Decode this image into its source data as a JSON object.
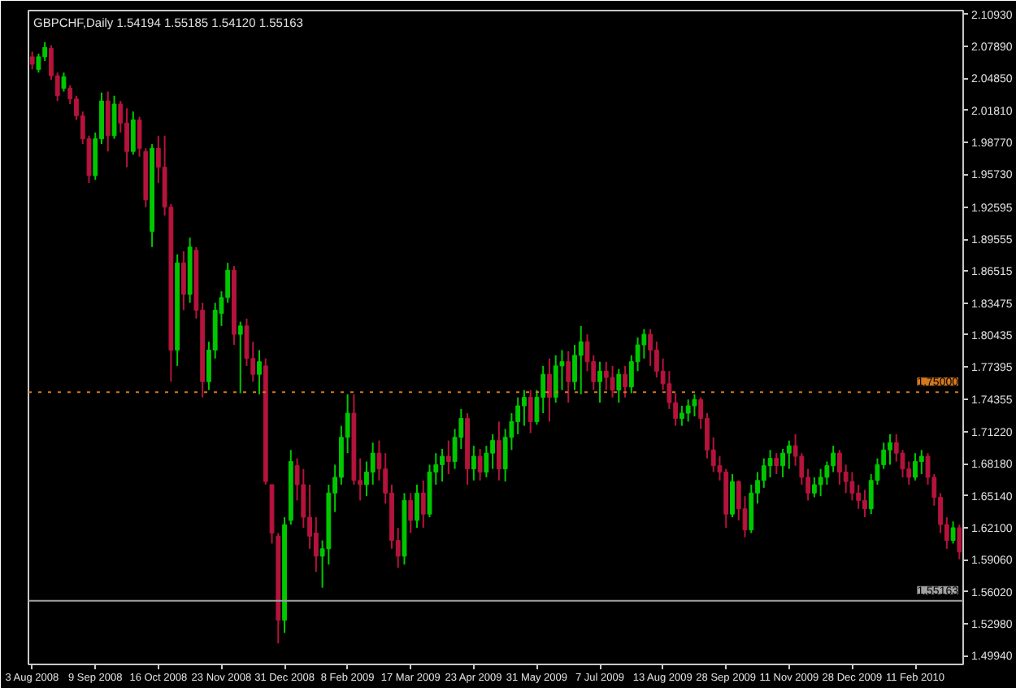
{
  "chart_data": {
    "type": "candlestick",
    "title": "GBPCHF,Daily 1.54194 1.55185 1.54120 1.55163",
    "categories": [
      "3 Aug 2008",
      null,
      null,
      null,
      null,
      null,
      null,
      null,
      null,
      null,
      "9 Sep 2008",
      null,
      null,
      null,
      null,
      null,
      null,
      null,
      null,
      null,
      "16 Oct 2008",
      null,
      null,
      null,
      null,
      null,
      null,
      null,
      null,
      null,
      "23 Nov 2008",
      null,
      null,
      null,
      null,
      null,
      null,
      null,
      null,
      null,
      "31 Dec 2008",
      null,
      null,
      null,
      null,
      null,
      null,
      null,
      null,
      null,
      "8 Feb 2009",
      null,
      null,
      null,
      null,
      null,
      null,
      null,
      null,
      null,
      "17 Mar 2009",
      null,
      null,
      null,
      null,
      null,
      null,
      null,
      null,
      null,
      "23 Apr 2009",
      null,
      null,
      null,
      null,
      null,
      null,
      null,
      null,
      null,
      "31 May 2009",
      null,
      null,
      null,
      null,
      null,
      null,
      null,
      null,
      null,
      "7 Jul 2009",
      null,
      null,
      null,
      null,
      null,
      null,
      null,
      null,
      null,
      "13 Aug 2009",
      null,
      null,
      null,
      null,
      null,
      null,
      null,
      null,
      null,
      "28 Sep 2009",
      null,
      null,
      null,
      null,
      null,
      null,
      null,
      null,
      null,
      "11 Nov 2009",
      null,
      null,
      null,
      null,
      null,
      null,
      null,
      null,
      null,
      "28 Dec 2009",
      null,
      null,
      null,
      null,
      null,
      null,
      null,
      null,
      null,
      "11 Feb 2010",
      null,
      null,
      null,
      null,
      null,
      null,
      null
    ],
    "ohlc": [
      [
        2.069,
        2.074,
        2.057,
        2.062
      ],
      [
        2.057,
        2.072,
        2.054,
        2.069
      ],
      [
        2.069,
        2.083,
        2.065,
        2.078
      ],
      [
        2.077,
        2.08,
        2.047,
        2.051
      ],
      [
        2.051,
        2.054,
        2.027,
        2.032
      ],
      [
        2.039,
        2.054,
        2.036,
        2.05
      ],
      [
        2.039,
        2.042,
        2.024,
        2.029
      ],
      [
        2.029,
        2.032,
        2.009,
        2.013
      ],
      [
        2.013,
        2.017,
        1.986,
        1.991
      ],
      [
        1.991,
        1.994,
        1.949,
        1.956
      ],
      [
        1.956,
        1.997,
        1.952,
        1.991
      ],
      [
        1.991,
        2.035,
        1.986,
        2.027
      ],
      [
        2.027,
        2.036,
        1.979,
        1.994
      ],
      [
        1.994,
        2.032,
        1.991,
        2.024
      ],
      [
        2.024,
        2.027,
        1.997,
        2.006
      ],
      [
        2.006,
        2.02,
        1.964,
        1.979
      ],
      [
        1.979,
        2.017,
        1.976,
        2.009
      ],
      [
        2.009,
        2.012,
        1.974,
        1.982
      ],
      [
        1.979,
        1.982,
        1.926,
        1.933
      ],
      [
        1.903,
        1.986,
        1.888,
        1.982
      ],
      [
        1.982,
        1.994,
        1.949,
        1.964
      ],
      [
        1.964,
        1.994,
        1.918,
        1.926
      ],
      [
        1.926,
        1.929,
        1.76,
        1.79
      ],
      [
        1.79,
        1.881,
        1.775,
        1.873
      ],
      [
        1.873,
        1.884,
        1.828,
        1.843
      ],
      [
        1.843,
        1.897,
        1.835,
        1.888
      ],
      [
        1.885,
        1.888,
        1.82,
        1.828
      ],
      [
        1.828,
        1.835,
        1.745,
        1.76
      ],
      [
        1.76,
        1.798,
        1.752,
        1.79
      ],
      [
        1.79,
        1.835,
        1.782,
        1.828
      ],
      [
        1.825,
        1.846,
        1.813,
        1.84
      ],
      [
        1.84,
        1.873,
        1.835,
        1.866
      ],
      [
        1.866,
        1.87,
        1.795,
        1.805
      ],
      [
        1.805,
        1.817,
        1.749,
        1.813
      ],
      [
        1.813,
        1.82,
        1.775,
        1.782
      ],
      [
        1.782,
        1.798,
        1.76,
        1.767
      ],
      [
        1.767,
        1.79,
        1.748,
        1.779
      ],
      [
        1.775,
        1.782,
        1.662,
        1.665
      ],
      [
        1.662,
        1.662,
        1.606,
        1.616
      ],
      [
        1.613,
        1.616,
        1.511,
        1.533
      ],
      [
        1.533,
        1.631,
        1.521,
        1.624
      ],
      [
        1.628,
        1.695,
        1.624,
        1.684
      ],
      [
        1.68,
        1.687,
        1.647,
        1.662
      ],
      [
        1.662,
        1.677,
        1.621,
        1.631
      ],
      [
        1.631,
        1.662,
        1.601,
        1.613
      ],
      [
        1.616,
        1.631,
        1.579,
        1.594
      ],
      [
        1.594,
        1.609,
        1.564,
        1.601
      ],
      [
        1.601,
        1.662,
        1.586,
        1.654
      ],
      [
        1.654,
        1.681,
        1.636,
        1.669
      ],
      [
        1.669,
        1.718,
        1.662,
        1.707
      ],
      [
        1.707,
        1.748,
        1.692,
        1.73
      ],
      [
        1.73,
        1.748,
        1.662,
        1.666
      ],
      [
        1.666,
        1.687,
        1.647,
        1.662
      ],
      [
        1.662,
        1.684,
        1.651,
        1.674
      ],
      [
        1.674,
        1.702,
        1.662,
        1.692
      ],
      [
        1.692,
        1.704,
        1.666,
        1.677
      ],
      [
        1.677,
        1.692,
        1.644,
        1.654
      ],
      [
        1.654,
        1.662,
        1.601,
        1.609
      ],
      [
        1.609,
        1.621,
        1.583,
        1.594
      ],
      [
        1.594,
        1.654,
        1.586,
        1.647
      ],
      [
        1.647,
        1.654,
        1.616,
        1.628
      ],
      [
        1.628,
        1.662,
        1.621,
        1.654
      ],
      [
        1.654,
        1.666,
        1.621,
        1.634
      ],
      [
        1.634,
        1.681,
        1.631,
        1.674
      ],
      [
        1.674,
        1.692,
        1.662,
        1.681
      ],
      [
        1.681,
        1.696,
        1.665,
        1.689
      ],
      [
        1.689,
        1.704,
        1.672,
        1.684
      ],
      [
        1.684,
        1.715,
        1.677,
        1.707
      ],
      [
        1.707,
        1.734,
        1.696,
        1.725
      ],
      [
        1.725,
        1.73,
        1.662,
        1.677
      ],
      [
        1.677,
        1.699,
        1.666,
        1.689
      ],
      [
        1.689,
        1.696,
        1.666,
        1.674
      ],
      [
        1.674,
        1.699,
        1.669,
        1.692
      ],
      [
        1.692,
        1.71,
        1.677,
        1.704
      ],
      [
        1.704,
        1.722,
        1.666,
        1.677
      ],
      [
        1.677,
        1.715,
        1.665,
        1.707
      ],
      [
        1.707,
        1.73,
        1.695,
        1.722
      ],
      [
        1.722,
        1.745,
        1.71,
        1.737
      ],
      [
        1.737,
        1.752,
        1.718,
        1.745
      ],
      [
        1.745,
        1.752,
        1.711,
        1.722
      ],
      [
        1.722,
        1.752,
        1.719,
        1.745
      ],
      [
        1.745,
        1.775,
        1.73,
        1.767
      ],
      [
        1.767,
        1.782,
        1.722,
        1.745
      ],
      [
        1.745,
        1.785,
        1.74,
        1.775
      ],
      [
        1.775,
        1.79,
        1.752,
        1.779
      ],
      [
        1.779,
        1.789,
        1.74,
        1.76
      ],
      [
        1.76,
        1.795,
        1.752,
        1.785
      ],
      [
        1.785,
        1.813,
        1.748,
        1.798
      ],
      [
        1.798,
        1.805,
        1.77,
        1.779
      ],
      [
        1.779,
        1.785,
        1.752,
        1.76
      ],
      [
        1.76,
        1.779,
        1.74,
        1.77
      ],
      [
        1.77,
        1.779,
        1.752,
        1.764
      ],
      [
        1.764,
        1.775,
        1.745,
        1.752
      ],
      [
        1.752,
        1.772,
        1.74,
        1.767
      ],
      [
        1.767,
        1.775,
        1.745,
        1.755
      ],
      [
        1.755,
        1.785,
        1.749,
        1.779
      ],
      [
        1.779,
        1.802,
        1.77,
        1.795
      ],
      [
        1.795,
        1.81,
        1.782,
        1.805
      ],
      [
        1.805,
        1.81,
        1.775,
        1.79
      ],
      [
        1.79,
        1.798,
        1.764,
        1.77
      ],
      [
        1.77,
        1.782,
        1.752,
        1.758
      ],
      [
        1.758,
        1.77,
        1.734,
        1.74
      ],
      [
        1.74,
        1.749,
        1.718,
        1.725
      ],
      [
        1.725,
        1.737,
        1.718,
        1.73
      ],
      [
        1.73,
        1.743,
        1.722,
        1.737
      ],
      [
        1.737,
        1.748,
        1.727,
        1.743
      ],
      [
        1.743,
        1.745,
        1.715,
        1.725
      ],
      [
        1.725,
        1.73,
        1.687,
        1.695
      ],
      [
        1.695,
        1.707,
        1.674,
        1.68
      ],
      [
        1.68,
        1.689,
        1.666,
        1.674
      ],
      [
        1.674,
        1.677,
        1.621,
        1.634
      ],
      [
        1.634,
        1.672,
        1.631,
        1.665
      ],
      [
        1.665,
        1.666,
        1.628,
        1.639
      ],
      [
        1.639,
        1.651,
        1.612,
        1.619
      ],
      [
        1.619,
        1.662,
        1.616,
        1.654
      ],
      [
        1.654,
        1.674,
        1.644,
        1.666
      ],
      [
        1.666,
        1.687,
        1.659,
        1.68
      ],
      [
        1.68,
        1.695,
        1.669,
        1.687
      ],
      [
        1.687,
        1.692,
        1.672,
        1.68
      ],
      [
        1.68,
        1.696,
        1.669,
        1.692
      ],
      [
        1.692,
        1.704,
        1.677,
        1.699
      ],
      [
        1.699,
        1.71,
        1.68,
        1.689
      ],
      [
        1.689,
        1.692,
        1.662,
        1.669
      ],
      [
        1.669,
        1.677,
        1.647,
        1.654
      ],
      [
        1.654,
        1.669,
        1.65,
        1.662
      ],
      [
        1.662,
        1.677,
        1.651,
        1.669
      ],
      [
        1.669,
        1.684,
        1.662,
        1.68
      ],
      [
        1.68,
        1.699,
        1.674,
        1.692
      ],
      [
        1.692,
        1.695,
        1.662,
        1.674
      ],
      [
        1.674,
        1.681,
        1.654,
        1.665
      ],
      [
        1.665,
        1.674,
        1.647,
        1.654
      ],
      [
        1.654,
        1.662,
        1.639,
        1.647
      ],
      [
        1.647,
        1.657,
        1.631,
        1.639
      ],
      [
        1.639,
        1.672,
        1.634,
        1.666
      ],
      [
        1.666,
        1.687,
        1.662,
        1.681
      ],
      [
        1.681,
        1.702,
        1.677,
        1.695
      ],
      [
        1.695,
        1.71,
        1.681,
        1.702
      ],
      [
        1.702,
        1.71,
        1.684,
        1.692
      ],
      [
        1.692,
        1.695,
        1.669,
        1.677
      ],
      [
        1.677,
        1.684,
        1.662,
        1.669
      ],
      [
        1.669,
        1.692,
        1.666,
        1.684
      ],
      [
        1.684,
        1.695,
        1.672,
        1.689
      ],
      [
        1.689,
        1.692,
        1.662,
        1.669
      ],
      [
        1.669,
        1.672,
        1.642,
        1.65
      ],
      [
        1.65,
        1.654,
        1.616,
        1.624
      ],
      [
        1.624,
        1.631,
        1.601,
        1.609
      ],
      [
        1.609,
        1.627,
        1.606,
        1.621
      ],
      [
        1.621,
        1.624,
        1.591,
        1.598
      ]
    ],
    "colors": [
      "#b4143c",
      "#00c800",
      "#00c800",
      "#b4143c",
      "#b4143c",
      "#00c800",
      "#b4143c",
      "#b4143c",
      "#b4143c",
      "#b4143c",
      "#00c800",
      "#00c800",
      "#b4143c",
      "#00c800",
      "#b4143c",
      "#b4143c",
      "#00c800",
      "#b4143c",
      "#b4143c",
      "#00c800",
      "#b4143c",
      "#b4143c",
      "#b4143c",
      "#00c800",
      "#b4143c",
      "#00c800",
      "#b4143c",
      "#b4143c",
      "#00c800",
      "#00c800",
      "#00c800",
      "#00c800",
      "#b4143c",
      "#00c800",
      "#b4143c",
      "#b4143c",
      "#00c800",
      "#b4143c",
      "#b4143c",
      "#b4143c",
      "#00c800",
      "#00c800",
      "#b4143c",
      "#b4143c",
      "#b4143c",
      "#b4143c",
      "#00c800",
      "#00c800",
      "#00c800",
      "#00c800",
      "#00c800",
      "#b4143c",
      "#b4143c",
      "#00c800",
      "#00c800",
      "#b4143c",
      "#b4143c",
      "#b4143c",
      "#b4143c",
      "#00c800",
      "#b4143c",
      "#00c800",
      "#b4143c",
      "#00c800",
      "#00c800",
      "#00c800",
      "#b4143c",
      "#00c800",
      "#00c800",
      "#b4143c",
      "#00c800",
      "#b4143c",
      "#00c800",
      "#00c800",
      "#b4143c",
      "#00c800",
      "#00c800",
      "#00c800",
      "#00c800",
      "#b4143c",
      "#00c800",
      "#00c800",
      "#b4143c",
      "#00c800",
      "#00c800",
      "#b4143c",
      "#00c800",
      "#00c800",
      "#b4143c",
      "#b4143c",
      "#00c800",
      "#b4143c",
      "#b4143c",
      "#00c800",
      "#b4143c",
      "#00c800",
      "#00c800",
      "#00c800",
      "#b4143c",
      "#b4143c",
      "#b4143c",
      "#b4143c",
      "#b4143c",
      "#00c800",
      "#00c800",
      "#00c800",
      "#b4143c",
      "#b4143c",
      "#b4143c",
      "#b4143c",
      "#b4143c",
      "#00c800",
      "#b4143c",
      "#b4143c",
      "#00c800",
      "#00c800",
      "#00c800",
      "#00c800",
      "#b4143c",
      "#00c800",
      "#00c800",
      "#b4143c",
      "#b4143c",
      "#b4143c",
      "#00c800",
      "#00c800",
      "#00c800",
      "#00c800",
      "#b4143c",
      "#b4143c",
      "#b4143c",
      "#b4143c",
      "#b4143c",
      "#00c800",
      "#00c800",
      "#00c800",
      "#00c800",
      "#b4143c",
      "#b4143c",
      "#b4143c",
      "#00c800",
      "#00c800",
      "#b4143c",
      "#b4143c",
      "#b4143c",
      "#b4143c",
      "#00c800",
      "#b4143c"
    ],
    "ylim": [
      1.491,
      2.113
    ],
    "yticks": [
      {
        "value": 2.1093,
        "label": "2.10930"
      },
      {
        "value": 2.0789,
        "label": "2.07890"
      },
      {
        "value": 2.0485,
        "label": "2.04850"
      },
      {
        "value": 2.0181,
        "label": "2.01810"
      },
      {
        "value": 1.9877,
        "label": "1.98770"
      },
      {
        "value": 1.9573,
        "label": "1.95730"
      },
      {
        "value": 1.92595,
        "label": "1.92595"
      },
      {
        "value": 1.89555,
        "label": "1.89555"
      },
      {
        "value": 1.86515,
        "label": "1.86515"
      },
      {
        "value": 1.83475,
        "label": "1.83475"
      },
      {
        "value": 1.80435,
        "label": "1.80435"
      },
      {
        "value": 1.77395,
        "label": "1.77395"
      },
      {
        "value": 1.74355,
        "label": "1.74355"
      },
      {
        "value": 1.7122,
        "label": "1.71220"
      },
      {
        "value": 1.6818,
        "label": "1.68180"
      },
      {
        "value": 1.6514,
        "label": "1.65140"
      },
      {
        "value": 1.621,
        "label": "1.62100"
      },
      {
        "value": 1.5906,
        "label": "1.59060"
      },
      {
        "value": 1.5602,
        "label": "1.56020"
      },
      {
        "value": 1.5298,
        "label": "1.52980"
      },
      {
        "value": 1.4994,
        "label": "1.49940"
      }
    ],
    "ref_lines": [
      {
        "axis": "y",
        "value": 1.75,
        "label": "1.75000",
        "color": "#d2781e",
        "line_style": "dotted"
      },
      {
        "axis": "y",
        "value": 1.55163,
        "label": "1.55163",
        "color": "#a0a0a0",
        "line_style": "solid"
      }
    ]
  }
}
